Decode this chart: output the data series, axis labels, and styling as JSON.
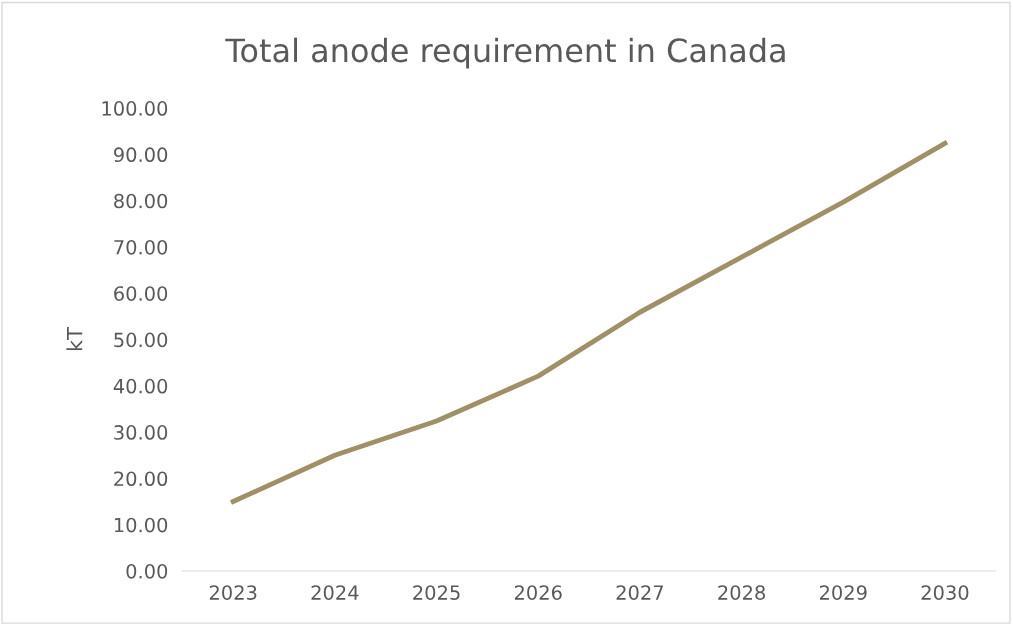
{
  "chart_data": {
    "type": "line",
    "title": "Total anode requirement in Canada",
    "ylabel": "kT",
    "categories": [
      "2023",
      "2024",
      "2025",
      "2026",
      "2027",
      "2028",
      "2029",
      "2030"
    ],
    "series": [
      {
        "color": "#a09068",
        "values": [
          15.0,
          25.0,
          32.4,
          42.1,
          55.9,
          67.8,
          79.7,
          92.4
        ]
      }
    ],
    "ylim": [
      0,
      100
    ],
    "yticks": [
      {
        "value": 0,
        "label": "0.00"
      },
      {
        "value": 10,
        "label": "10.00"
      },
      {
        "value": 20,
        "label": "20.00"
      },
      {
        "value": 30,
        "label": "30.00"
      },
      {
        "value": 40,
        "label": "40.00"
      },
      {
        "value": 50,
        "label": "50.00"
      },
      {
        "value": 60,
        "label": "60.00"
      },
      {
        "value": 70,
        "label": "70.00"
      },
      {
        "value": 80,
        "label": "80.00"
      },
      {
        "value": 90,
        "label": "90.00"
      },
      {
        "value": 100,
        "label": "100.00"
      }
    ],
    "grid": false,
    "legend": false
  }
}
